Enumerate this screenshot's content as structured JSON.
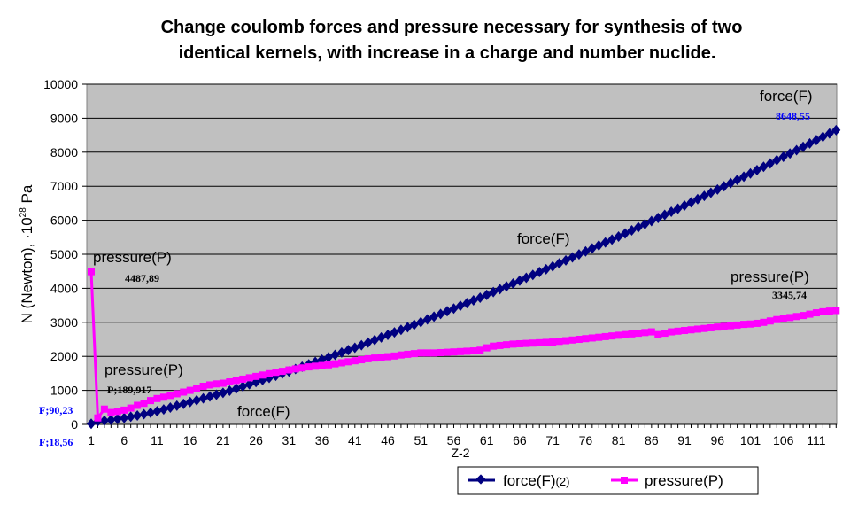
{
  "chart_data": {
    "type": "line",
    "title": [
      "Change coulomb forces and pressure necessary for synthesis of two",
      "identical kernels, with increase in a charge and number nuclide."
    ],
    "xlabel": "Z-2",
    "ylabel": "N (Newton), ·10",
    "ylabel_exp": "28",
    "ylabel_unit": " Pa",
    "ylim": [
      0,
      10000
    ],
    "yticks": [
      0,
      1000,
      2000,
      3000,
      4000,
      5000,
      6000,
      7000,
      8000,
      9000,
      10000
    ],
    "xticks": [
      "1",
      "6",
      "11",
      "16",
      "21",
      "26",
      "31",
      "36",
      "41",
      "46",
      "51",
      "56",
      "61",
      "66",
      "71",
      "76",
      "81",
      "86",
      "91",
      "96",
      "101",
      "106",
      "111"
    ],
    "grid": true,
    "legend_position": "bottom",
    "colors": {
      "plot_bg": "#c0c0c0",
      "force": "#000080",
      "pressure": "#ff00ff",
      "blue_label": "#0000ff"
    },
    "series": [
      {
        "name": "force(F)(2)",
        "marker": "diamond",
        "values": [
          18.56,
          90.23,
          110,
          135,
          160,
          190,
          225,
          260,
          300,
          343,
          387,
          441,
          495,
          549,
          603,
          657,
          711,
          765,
          819,
          873,
          927,
          990,
          1053,
          1116,
          1179,
          1242,
          1304,
          1367,
          1430,
          1493,
          1556,
          1626,
          1695,
          1765,
          1835,
          1905,
          1974,
          2044,
          2114,
          2183,
          2253,
          2328,
          2404,
          2479,
          2554,
          2630,
          2705,
          2780,
          2855,
          2931,
          3006,
          3086,
          3166,
          3246,
          3326,
          3406,
          3485,
          3565,
          3645,
          3725,
          3805,
          3889,
          3973,
          4057,
          4141,
          4226,
          4310,
          4394,
          4478,
          4562,
          4646,
          4734,
          4821,
          4909,
          4996,
          5084,
          5172,
          5259,
          5347,
          5434,
          5522,
          5613,
          5704,
          5795,
          5886,
          5978,
          6069,
          6160,
          6251,
          6342,
          6433,
          6527,
          6622,
          6716,
          6810,
          6905,
          6999,
          7093,
          7187,
          7282,
          7376,
          7474,
          7572,
          7670,
          7768,
          7866,
          7963,
          8061,
          8159,
          8257,
          8355,
          8453,
          8550,
          8648.55
        ]
      },
      {
        "name": "pressure(P)",
        "marker": "square",
        "values": [
          4487.89,
          189.917,
          450,
          350,
          380,
          420,
          480,
          560,
          620,
          700,
          760,
          800,
          850,
          900,
          950,
          1000,
          1060,
          1120,
          1160,
          1190,
          1210,
          1250,
          1290,
          1330,
          1370,
          1410,
          1450,
          1490,
          1530,
          1560,
          1600,
          1630,
          1660,
          1690,
          1710,
          1730,
          1750,
          1780,
          1810,
          1840,
          1870,
          1900,
          1930,
          1950,
          1970,
          1990,
          2010,
          2040,
          2060,
          2080,
          2100,
          2100,
          2100,
          2110,
          2120,
          2130,
          2140,
          2150,
          2160,
          2180,
          2250,
          2300,
          2320,
          2340,
          2360,
          2370,
          2380,
          2390,
          2400,
          2410,
          2420,
          2440,
          2460,
          2480,
          2500,
          2520,
          2540,
          2560,
          2580,
          2600,
          2620,
          2640,
          2660,
          2680,
          2700,
          2720,
          2640,
          2680,
          2720,
          2740,
          2760,
          2780,
          2800,
          2820,
          2840,
          2860,
          2880,
          2900,
          2920,
          2940,
          2950,
          2970,
          3000,
          3040,
          3080,
          3110,
          3140,
          3170,
          3200,
          3240,
          3280,
          3310,
          3330,
          3345.74
        ]
      }
    ],
    "legend": [
      {
        "label": "force",
        "suffix": "(F)",
        "extra": "(2)"
      },
      {
        "label": "pressure",
        "suffix": "(P)"
      }
    ],
    "annotations": {
      "force_top": "force(F)",
      "force_top_value": "8648,55",
      "force_mid": "force(F)",
      "force_low": "force(F)",
      "pressure_first": "pressure(P)",
      "pressure_first_value": "4487,89",
      "pressure_end": "pressure(P)",
      "pressure_end_value": "3345,74",
      "pressure_second": "pressure(P)",
      "pressure_second_value": "P;189,917",
      "force_second_value": "F;90,23",
      "force_first_value": "F;18,56"
    }
  }
}
